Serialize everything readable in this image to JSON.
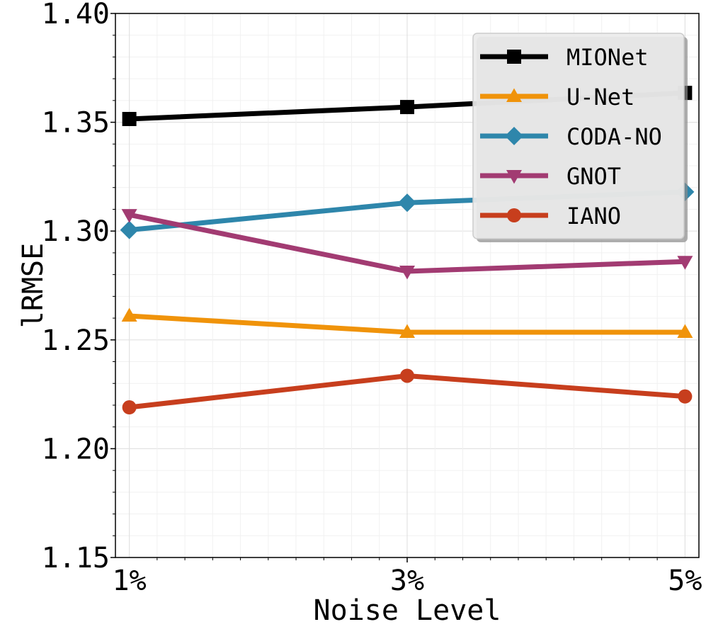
{
  "chart_data": {
    "type": "line",
    "title": "",
    "xlabel": "Noise Level",
    "ylabel": "lRMSE",
    "categories": [
      "1%",
      "3%",
      "5%"
    ],
    "x": [
      1,
      3,
      5
    ],
    "xlim": [
      0.9,
      5.1
    ],
    "ylim": [
      1.15,
      1.4
    ],
    "yticks": [
      1.15,
      1.2,
      1.25,
      1.3,
      1.35,
      1.4
    ],
    "ytick_labels": [
      "1.15",
      "1.20",
      "1.25",
      "1.30",
      "1.35",
      "1.40"
    ],
    "grid": true,
    "legend_location": "top-right",
    "series": [
      {
        "name": "MIONet",
        "values": [
          1.3515,
          1.357,
          1.3635
        ],
        "color": "#000000",
        "marker": "square"
      },
      {
        "name": "U-Net",
        "values": [
          1.261,
          1.2535,
          1.2535
        ],
        "color": "#f0930a",
        "marker": "triangle-up"
      },
      {
        "name": "CODA-NO",
        "values": [
          1.3005,
          1.313,
          1.318
        ],
        "color": "#2e86ab",
        "marker": "diamond"
      },
      {
        "name": "GNOT",
        "values": [
          1.3075,
          1.2815,
          1.286
        ],
        "color": "#a23b72",
        "marker": "triangle-down"
      },
      {
        "name": "IANO",
        "values": [
          1.219,
          1.2335,
          1.224
        ],
        "color": "#c73e1d",
        "marker": "circle"
      }
    ]
  }
}
